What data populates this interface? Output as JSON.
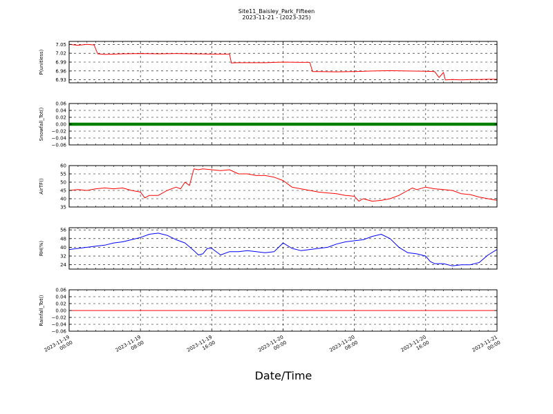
{
  "figure": {
    "title_line1": "Site11_Baisley_Park_Fifteen",
    "title_line2": "2023-11-21 - (2023-325)",
    "xlabel": "Date/Time"
  },
  "chart_data": {
    "type": "line",
    "grid": true,
    "x_ticks": [
      {
        "line1": "2023-11-19",
        "line2": "00:00",
        "hours": 0
      },
      {
        "line1": "2023-11-19",
        "line2": "08:00",
        "hours": 8
      },
      {
        "line1": "2023-11-19",
        "line2": "16:00",
        "hours": 16
      },
      {
        "line1": "2023-11-20",
        "line2": "00:00",
        "hours": 24
      },
      {
        "line1": "2023-11-20",
        "line2": "08:00",
        "hours": 32
      },
      {
        "line1": "2023-11-20",
        "line2": "16:00",
        "hours": 40
      },
      {
        "line1": "2023-11-21",
        "line2": "00:00",
        "hours": 48
      }
    ],
    "panels": [
      {
        "ylabel": "P(unitless)",
        "ylim": [
          6.92,
          7.06
        ],
        "yticks": [
          "7.05",
          "7.02",
          "6.99",
          "6.96",
          "6.93"
        ],
        "ytick_values": [
          7.05,
          7.02,
          6.99,
          6.96,
          6.93
        ],
        "color": "#ff0000",
        "style": "line",
        "x": [
          0,
          1,
          2,
          2.8,
          3.2,
          4,
          6,
          8,
          10,
          12,
          14,
          16,
          18,
          18.2,
          18.8,
          20,
          22,
          24,
          26,
          27,
          27.3,
          28,
          30,
          32,
          34,
          36,
          38,
          40,
          41,
          41.5,
          42,
          42.2,
          43,
          44,
          45,
          46,
          47,
          48
        ],
        "values": [
          7.05,
          7.047,
          7.05,
          7.048,
          7.018,
          7.016,
          7.018,
          7.019,
          7.018,
          7.019,
          7.018,
          7.017,
          7.017,
          6.987,
          6.988,
          6.988,
          6.988,
          6.99,
          6.989,
          6.989,
          6.958,
          6.958,
          6.957,
          6.958,
          6.96,
          6.961,
          6.96,
          6.959,
          6.958,
          6.938,
          6.955,
          6.93,
          6.931,
          6.93,
          6.931,
          6.931,
          6.932,
          6.932
        ]
      },
      {
        "ylabel": "Snowfall_Tot()",
        "ylim": [
          -0.06,
          0.06
        ],
        "yticks": [
          "0.06",
          "0.04",
          "0.02",
          "0.00",
          "−0.02",
          "−0.04",
          "−0.06"
        ],
        "ytick_values": [
          0.06,
          0.04,
          0.02,
          0.0,
          -0.02,
          -0.04,
          -0.06
        ],
        "color": "#008000",
        "style": "markers",
        "x": [
          0,
          48
        ],
        "values": [
          0,
          0
        ]
      },
      {
        "ylabel": "AirTF()",
        "ylim": [
          35,
          60
        ],
        "yticks": [
          "60",
          "55",
          "50",
          "45",
          "40",
          "35"
        ],
        "ytick_values": [
          60,
          55,
          50,
          45,
          40,
          35
        ],
        "color": "#ff0000",
        "style": "line",
        "x": [
          0,
          1,
          2,
          3,
          4,
          5,
          6,
          7,
          8,
          8.5,
          9,
          10,
          11,
          12,
          12.5,
          13,
          13.5,
          14,
          14.5,
          15,
          16,
          17,
          18,
          19,
          20,
          21,
          22,
          23,
          24,
          25,
          26,
          27,
          28,
          29,
          30,
          31,
          32,
          32.5,
          33,
          34,
          35,
          36,
          37,
          38,
          38.5,
          39,
          40,
          41,
          42,
          43,
          44,
          45,
          46,
          47,
          48
        ],
        "values": [
          45,
          45.5,
          45,
          46,
          46.5,
          46,
          46.5,
          45,
          44,
          40.5,
          42,
          42,
          45,
          47,
          46,
          50,
          48,
          58,
          57.5,
          58,
          57.5,
          57,
          57.5,
          55,
          55,
          54,
          54,
          53,
          51,
          47,
          46,
          45,
          44,
          43.5,
          43,
          42,
          41.5,
          38.5,
          40,
          38.5,
          39,
          40,
          42,
          45,
          46.5,
          45.5,
          47,
          46,
          45.5,
          45,
          43,
          42.5,
          41,
          40,
          39
        ]
      },
      {
        "ylabel": "RH(%)",
        "ylim": [
          20,
          58
        ],
        "yticks": [
          "56",
          "48",
          "40",
          "32",
          "24"
        ],
        "ytick_values": [
          56,
          48,
          40,
          32,
          24
        ],
        "color": "#0000ff",
        "style": "line",
        "x": [
          0,
          1,
          2,
          3,
          4,
          5,
          6,
          7,
          8,
          9,
          10,
          11,
          12,
          13,
          14,
          14.5,
          15,
          15.5,
          16,
          17,
          18,
          19,
          20,
          21,
          22,
          23,
          24,
          25,
          26,
          27,
          28,
          29,
          30,
          31,
          32,
          33,
          34,
          35,
          36,
          37,
          38,
          39,
          40,
          40.5,
          41,
          42,
          43,
          44,
          45,
          46,
          47,
          48
        ],
        "values": [
          38,
          39,
          40,
          41,
          42,
          44,
          45,
          47,
          49,
          52,
          53,
          51,
          47,
          44,
          37,
          33,
          34,
          39,
          39,
          33,
          36,
          36,
          37,
          36,
          35,
          36,
          44,
          39,
          37,
          38,
          39,
          40,
          43,
          45,
          46,
          47,
          50,
          52,
          48,
          40,
          35,
          34,
          32,
          27,
          25,
          25,
          23,
          24,
          24,
          26,
          33,
          38
        ]
      },
      {
        "ylabel": "Rainfall_Tot()",
        "ylim": [
          -0.06,
          0.06
        ],
        "yticks": [
          "0.06",
          "0.04",
          "0.02",
          "0.00",
          "−0.02",
          "−0.04",
          "−0.06"
        ],
        "ytick_values": [
          0.06,
          0.04,
          0.02,
          0.0,
          -0.02,
          -0.04,
          -0.06
        ],
        "color": "#ff0000",
        "style": "line",
        "x": [
          0,
          48
        ],
        "values": [
          0,
          0
        ]
      }
    ]
  }
}
